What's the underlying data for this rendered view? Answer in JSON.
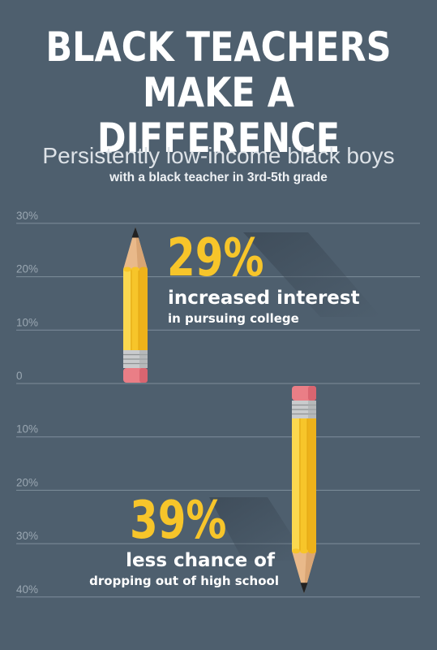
{
  "title": {
    "line1": "BLACK TEACHERS",
    "line2": "MAKE A DIFFERENCE"
  },
  "subtitle": "Persistently low-income black boys",
  "subtitle2": "with a black teacher in 3rd-5th grade",
  "colors": {
    "background": "#4e5f6e",
    "accent": "#f7c52a",
    "text": "#ffffff",
    "grid": "#7f8e9b"
  },
  "chart_data": {
    "type": "bar",
    "orientation": "diverging",
    "tick_labels": [
      "30%",
      "20%",
      "10%",
      "0",
      "10%",
      "20%",
      "30%",
      "40%"
    ],
    "ylim": [
      -40,
      30
    ],
    "grid": true,
    "series": [
      {
        "value": 29,
        "value_label": "29%",
        "label": "increased interest",
        "sublabel": "in pursuing college"
      },
      {
        "value": -39,
        "value_label": "39%",
        "label": "less chance of",
        "sublabel": "dropping out of high school"
      }
    ]
  }
}
